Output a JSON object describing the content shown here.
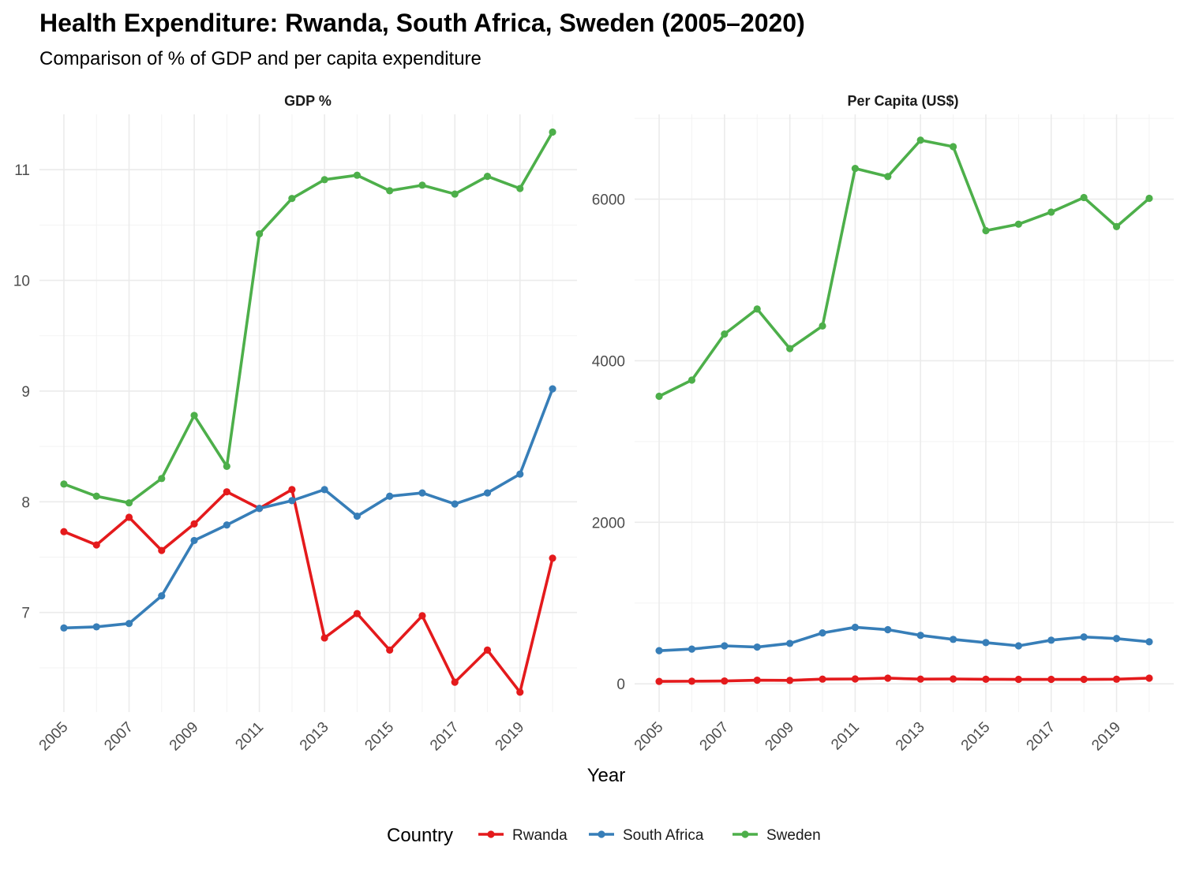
{
  "title": "Health Expenditure: Rwanda, South Africa, Sweden (2005–2020)",
  "subtitle": "Comparison of % of GDP and per capita expenditure",
  "xlabel": "Year",
  "legend": {
    "title": "Country",
    "placement": "bottom"
  },
  "colors": {
    "Rwanda": "#e41a1c",
    "South Africa": "#377eb8",
    "Sweden": "#4daf4a"
  },
  "chart_data": [
    {
      "type": "line",
      "panel_title": "GDP %",
      "x": [
        2005,
        2006,
        2007,
        2008,
        2009,
        2010,
        2011,
        2012,
        2013,
        2014,
        2015,
        2016,
        2017,
        2018,
        2019,
        2020
      ],
      "x_ticks": [
        "2005",
        "2007",
        "2009",
        "2011",
        "2013",
        "2015",
        "2017",
        "2019"
      ],
      "y_ticks": [
        "7",
        "8",
        "9",
        "10",
        "11"
      ],
      "ylim": [
        6.1,
        11.5
      ],
      "grid": true,
      "series": [
        {
          "name": "Rwanda",
          "values": [
            7.73,
            7.61,
            7.86,
            7.56,
            7.8,
            8.09,
            7.94,
            8.11,
            6.77,
            6.99,
            6.66,
            6.97,
            6.37,
            6.66,
            6.28,
            7.49
          ]
        },
        {
          "name": "South Africa",
          "values": [
            6.86,
            6.87,
            6.9,
            7.15,
            7.65,
            7.79,
            7.94,
            8.01,
            8.11,
            7.87,
            8.05,
            8.08,
            7.98,
            8.08,
            8.25,
            9.02
          ]
        },
        {
          "name": "Sweden",
          "values": [
            8.16,
            8.05,
            7.99,
            8.21,
            8.78,
            8.32,
            10.42,
            10.74,
            10.91,
            10.95,
            10.81,
            10.86,
            10.78,
            10.94,
            10.83,
            11.34
          ]
        }
      ]
    },
    {
      "type": "line",
      "panel_title": "Per Capita (US$)",
      "x": [
        2005,
        2006,
        2007,
        2008,
        2009,
        2010,
        2011,
        2012,
        2013,
        2014,
        2015,
        2016,
        2017,
        2018,
        2019,
        2020
      ],
      "x_ticks": [
        "2005",
        "2007",
        "2009",
        "2011",
        "2013",
        "2015",
        "2017",
        "2019"
      ],
      "y_ticks": [
        "0",
        "2000",
        "4000",
        "6000"
      ],
      "ylim": [
        -350,
        7050
      ],
      "grid": true,
      "series": [
        {
          "name": "Rwanda",
          "values": [
            30,
            32,
            35,
            45,
            42,
            58,
            60,
            70,
            58,
            60,
            56,
            55,
            55,
            55,
            57,
            70
          ]
        },
        {
          "name": "South Africa",
          "values": [
            410,
            430,
            470,
            455,
            500,
            630,
            700,
            670,
            600,
            550,
            510,
            470,
            540,
            580,
            560,
            520
          ]
        },
        {
          "name": "Sweden",
          "values": [
            3560,
            3760,
            4330,
            4640,
            4150,
            4430,
            6380,
            6280,
            6730,
            6650,
            5610,
            5690,
            5840,
            6020,
            5660,
            6010
          ]
        }
      ]
    }
  ]
}
